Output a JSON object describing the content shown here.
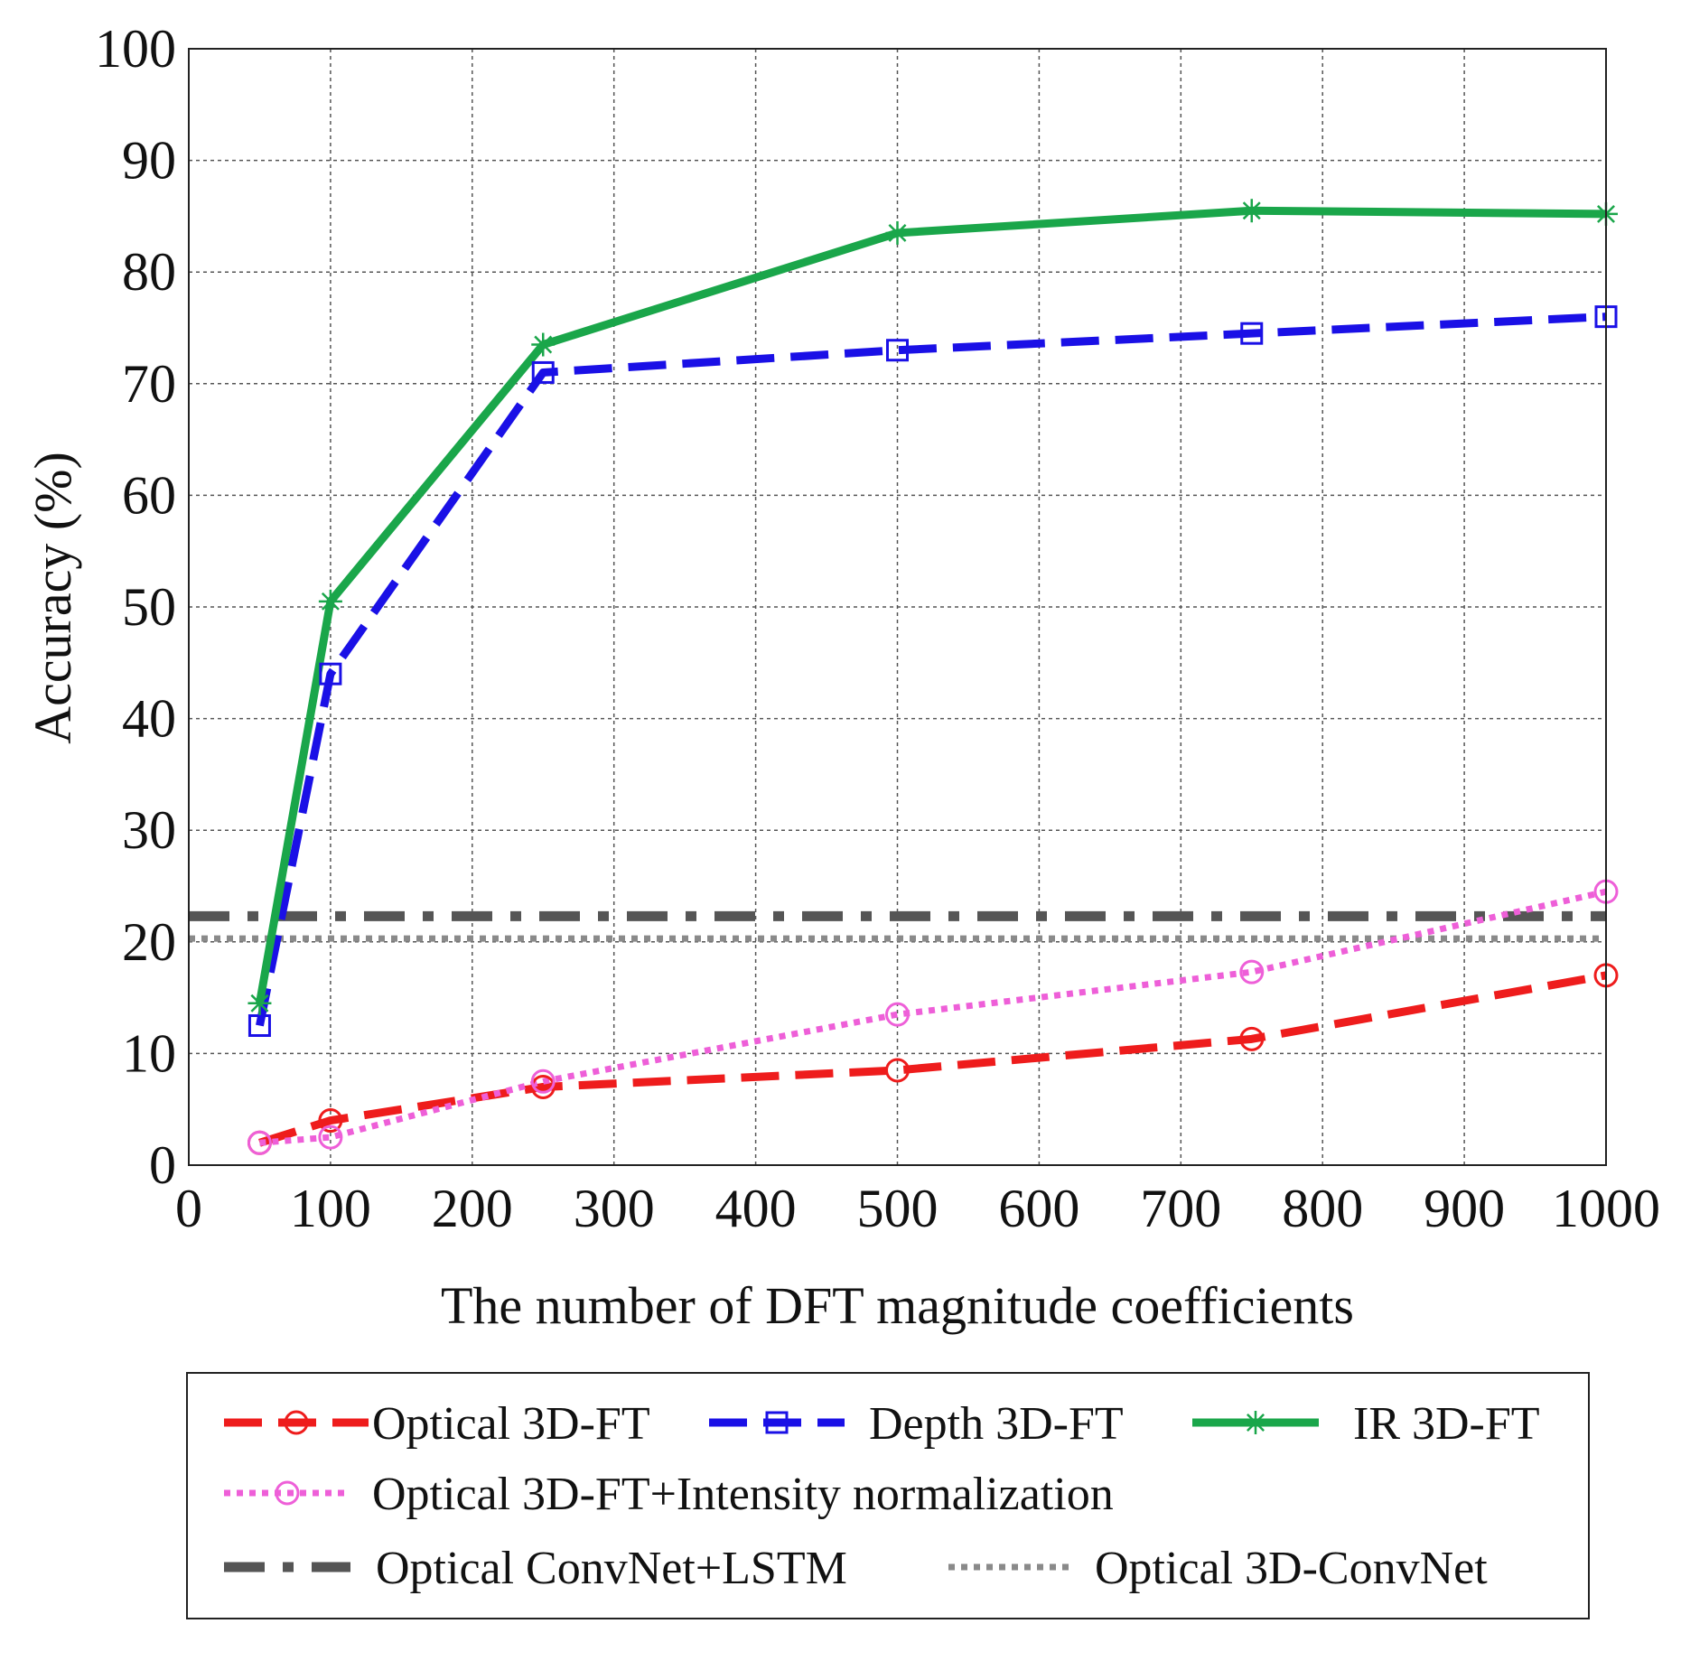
{
  "chart_data": {
    "type": "line",
    "title": "",
    "xlabel": "The number of DFT magnitude coefficients",
    "ylabel": "Accuracy (%)",
    "xlim": [
      0,
      1000
    ],
    "ylim": [
      0,
      100
    ],
    "xticks": [
      "0",
      "100",
      "200",
      "300",
      "400",
      "500",
      "600",
      "700",
      "800",
      "900",
      "1000"
    ],
    "yticks": [
      "0",
      "10",
      "20",
      "30",
      "40",
      "50",
      "60",
      "70",
      "80",
      "90",
      "100"
    ],
    "grid": true,
    "legend_position": "bottom",
    "series": [
      {
        "name": "Optical 3D-FT",
        "color": "#ee1c1c",
        "line": "dashed",
        "marker": "circle",
        "x": [
          50,
          100,
          250,
          500,
          750,
          1000
        ],
        "y": [
          2.0,
          4.0,
          7.0,
          8.5,
          11.3,
          17.0
        ]
      },
      {
        "name": "Depth 3D-FT",
        "color": "#1a10e6",
        "line": "dashed",
        "marker": "square",
        "x": [
          50,
          100,
          250,
          500,
          750,
          1000
        ],
        "y": [
          12.5,
          44.0,
          71.0,
          73.0,
          74.5,
          76.0
        ]
      },
      {
        "name": "IR 3D-FT",
        "color": "#1aa64a",
        "line": "solid",
        "marker": "asterisk",
        "x": [
          50,
          100,
          250,
          500,
          750,
          1000
        ],
        "y": [
          14.5,
          50.5,
          73.5,
          83.5,
          85.5,
          85.2
        ]
      },
      {
        "name": "Optical 3D-FT+Intensity normalization",
        "color": "#ee5fd8",
        "line": "dotted",
        "marker": "circle",
        "x": [
          50,
          100,
          250,
          500,
          750,
          1000
        ],
        "y": [
          2.0,
          2.5,
          7.5,
          13.5,
          17.3,
          24.5
        ]
      },
      {
        "name": "Optical ConvNet+LSTM",
        "color": "#555555",
        "line": "dashdot",
        "marker": "none",
        "x": [
          0,
          1000
        ],
        "y": [
          22.3,
          22.3
        ]
      },
      {
        "name": "Optical 3D-ConvNet",
        "color": "#8a8a8a",
        "line": "dotted",
        "marker": "none",
        "x": [
          0,
          1000
        ],
        "y": [
          20.3,
          20.3
        ]
      }
    ]
  }
}
